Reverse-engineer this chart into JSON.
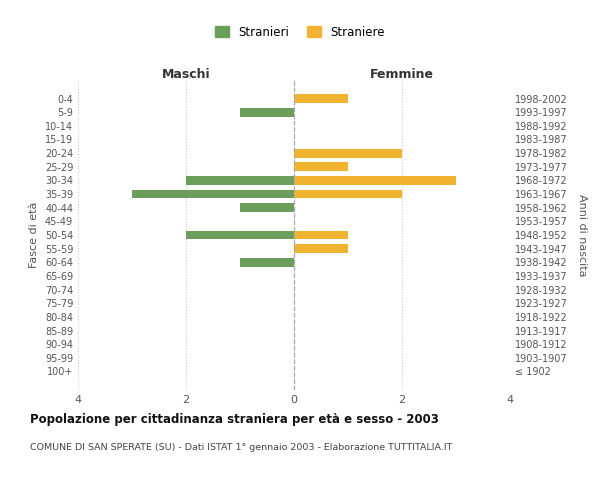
{
  "age_groups": [
    "100+",
    "95-99",
    "90-94",
    "85-89",
    "80-84",
    "75-79",
    "70-74",
    "65-69",
    "60-64",
    "55-59",
    "50-54",
    "45-49",
    "40-44",
    "35-39",
    "30-34",
    "25-29",
    "20-24",
    "15-19",
    "10-14",
    "5-9",
    "0-4"
  ],
  "birth_years": [
    "≤ 1902",
    "1903-1907",
    "1908-1912",
    "1913-1917",
    "1918-1922",
    "1923-1927",
    "1928-1932",
    "1933-1937",
    "1938-1942",
    "1943-1947",
    "1948-1952",
    "1953-1957",
    "1958-1962",
    "1963-1967",
    "1968-1972",
    "1973-1977",
    "1978-1982",
    "1983-1987",
    "1988-1992",
    "1993-1997",
    "1998-2002"
  ],
  "males": [
    0,
    0,
    0,
    0,
    0,
    0,
    0,
    0,
    1,
    0,
    2,
    0,
    1,
    3,
    2,
    0,
    0,
    0,
    0,
    1,
    0
  ],
  "females": [
    0,
    0,
    0,
    0,
    0,
    0,
    0,
    0,
    0,
    1,
    1,
    0,
    0,
    2,
    3,
    1,
    2,
    0,
    0,
    0,
    1
  ],
  "male_color": "#6a9e5a",
  "female_color": "#f0b430",
  "title": "Popolazione per cittadinanza straniera per età e sesso - 2003",
  "subtitle": "COMUNE DI SAN SPERATE (SU) - Dati ISTAT 1° gennaio 2003 - Elaborazione TUTTITALIA.IT",
  "xlabel_left": "Maschi",
  "xlabel_right": "Femmine",
  "ylabel_left": "Fasce di età",
  "ylabel_right": "Anni di nascita",
  "legend_male": "Stranieri",
  "legend_female": "Straniere",
  "xlim": 4,
  "background_color": "#ffffff",
  "grid_color": "#cccccc"
}
